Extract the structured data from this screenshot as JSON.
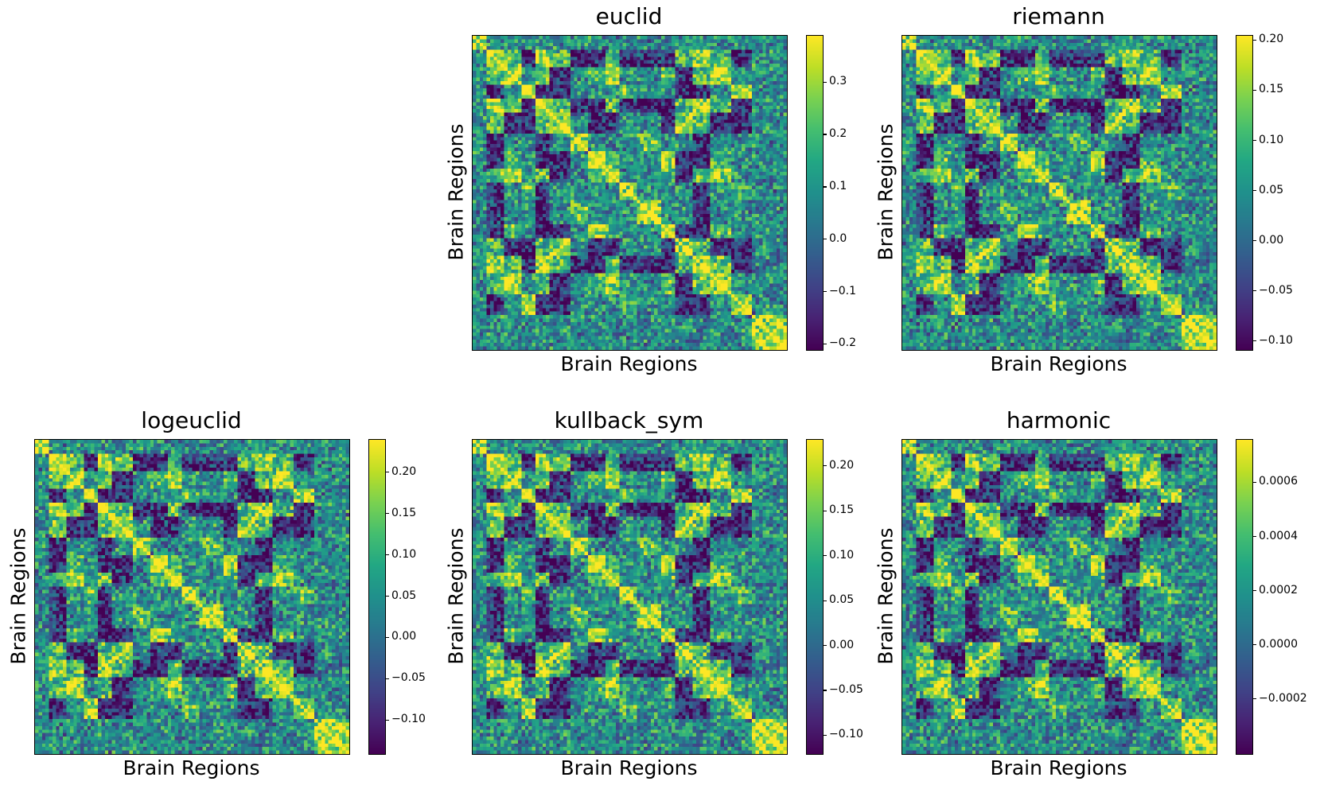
{
  "chart_data": [
    {
      "type": "heatmap",
      "title": "euclid",
      "xlabel": "Brain Regions",
      "ylabel": "Brain Regions",
      "colormap": "viridis",
      "range": [
        -0.21,
        0.39
      ],
      "colorbar_ticks": [
        -0.2,
        -0.1,
        0.0,
        0.1,
        0.2,
        0.3
      ],
      "colorbar_labels": [
        "−0.2",
        "−0.1",
        "0.0",
        "0.1",
        "0.2",
        "0.3"
      ],
      "seed": 11
    },
    {
      "type": "heatmap",
      "title": "riemann",
      "xlabel": "Brain Regions",
      "ylabel": "Brain Regions",
      "colormap": "viridis",
      "range": [
        -0.108,
        0.205
      ],
      "colorbar_ticks": [
        -0.1,
        -0.05,
        0.0,
        0.05,
        0.1,
        0.15,
        0.2
      ],
      "colorbar_labels": [
        "−0.10",
        "−0.05",
        "0.00",
        "0.05",
        "0.10",
        "0.15",
        "0.20"
      ],
      "seed": 23
    },
    {
      "type": "heatmap",
      "title": "logeuclid",
      "xlabel": "Brain Regions",
      "ylabel": "Brain Regions",
      "colormap": "viridis",
      "range": [
        -0.14,
        0.24
      ],
      "colorbar_ticks": [
        -0.1,
        -0.05,
        0.0,
        0.05,
        0.1,
        0.15,
        0.2
      ],
      "colorbar_labels": [
        "−0.10",
        "−0.05",
        "0.00",
        "0.05",
        "0.10",
        "0.15",
        "0.20"
      ],
      "seed": 37
    },
    {
      "type": "heatmap",
      "title": "kullback_sym",
      "xlabel": "Brain Regions",
      "ylabel": "Brain Regions",
      "colormap": "viridis",
      "range": [
        -0.12,
        0.23
      ],
      "colorbar_ticks": [
        -0.1,
        -0.05,
        0.0,
        0.05,
        0.1,
        0.15,
        0.2
      ],
      "colorbar_labels": [
        "−0.10",
        "−0.05",
        "0.00",
        "0.05",
        "0.10",
        "0.15",
        "0.20"
      ],
      "seed": 41
    },
    {
      "type": "heatmap",
      "title": "harmonic",
      "xlabel": "Brain Regions",
      "ylabel": "Brain Regions",
      "colormap": "viridis",
      "range": [
        -0.0004,
        0.00076
      ],
      "colorbar_ticks": [
        -0.0002,
        0.0,
        0.0002,
        0.0004,
        0.0006
      ],
      "colorbar_labels": [
        "−0.0002",
        "0.0000",
        "0.0002",
        "0.0004",
        "0.0006"
      ],
      "seed": 53
    }
  ]
}
